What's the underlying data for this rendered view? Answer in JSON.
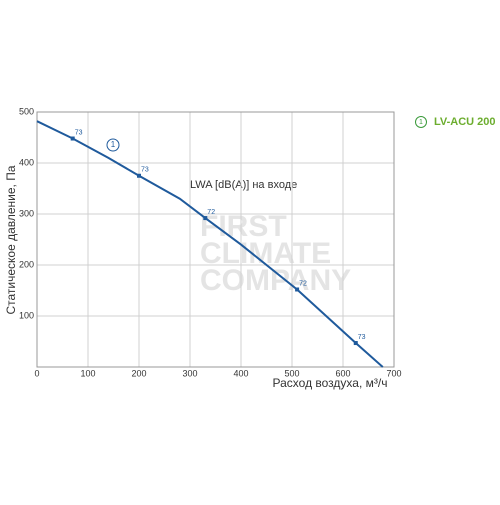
{
  "chart_data": {
    "type": "line",
    "x_label": "Расход воздуха, м³/ч",
    "y_label": "Статическое давление, Па",
    "annotation": "LWA [dB(A)] на входе",
    "watermark": [
      "FIRST",
      "CLIMATE",
      "COMPANY"
    ],
    "xlim": [
      0,
      700
    ],
    "xticks": [
      0,
      100,
      200,
      300,
      400,
      500,
      600,
      700
    ],
    "ylim": [
      0,
      500
    ],
    "yticks": [
      100,
      200,
      300,
      400,
      500
    ],
    "grid": true,
    "curve_label": "1",
    "series": [
      {
        "name": "LV-ACU 200",
        "color": "#1f5a9c",
        "x": [
          0,
          70,
          140,
          200,
          280,
          330,
          400,
          510,
          625,
          678
        ],
        "values": [
          482,
          448,
          410,
          375,
          330,
          292,
          240,
          152,
          47,
          0
        ]
      }
    ],
    "points": {
      "x": [
        70,
        200,
        330,
        510,
        625
      ],
      "values": [
        448,
        375,
        292,
        152,
        47
      ],
      "labels": [
        73,
        73,
        72,
        72,
        73
      ]
    }
  }
}
